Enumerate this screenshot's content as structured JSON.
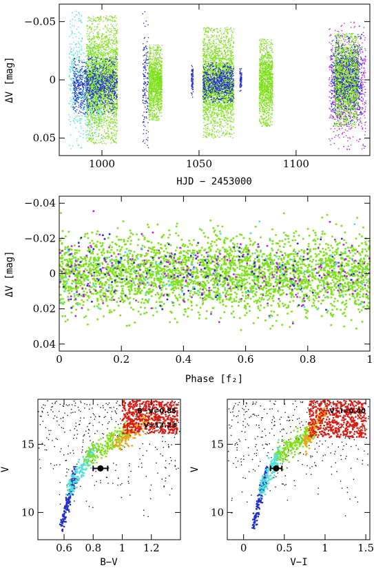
{
  "colors": {
    "cyan": "#4fe0d8",
    "green": "#7ee01a",
    "blue": "#2430c8",
    "magenta": "#b02ad8",
    "black": "#111111",
    "orange": "#f0a018",
    "red": "#d81c14"
  },
  "chart_data": [
    {
      "type": "scatter",
      "xlabel": "HJD − 2453000",
      "ylabel": "ΔV [mag]",
      "xlim": [
        978,
        1138
      ],
      "ylim": [
        0.065,
        -0.065
      ],
      "y_inverted": true,
      "xticks": [
        1000,
        1050,
        1100
      ],
      "yticks": [
        -0.05,
        0,
        0.05
      ],
      "ytick_labels": [
        "−0.05",
        "0",
        "0.05"
      ],
      "xtick_labels": [
        "1000",
        "1050",
        "1100"
      ],
      "clusters": [
        {
          "color": "cyan",
          "x_range": [
            983,
            990
          ],
          "y_range": [
            -0.06,
            0.06
          ]
        },
        {
          "color": "cyan",
          "x_range": [
            990,
            1000
          ],
          "y_range": [
            -0.03,
            0.05
          ]
        },
        {
          "color": "green",
          "x_range": [
            992,
            1008
          ],
          "y_range": [
            -0.055,
            0.055
          ]
        },
        {
          "color": "blue",
          "x_range": [
            985,
            1008
          ],
          "y_range": [
            -0.02,
            0.03
          ]
        },
        {
          "color": "blue",
          "x_range": [
            1021,
            1024
          ],
          "y_range": [
            -0.06,
            0.06
          ]
        },
        {
          "color": "green",
          "x_range": [
            1024,
            1031
          ],
          "y_range": [
            -0.03,
            0.035
          ]
        },
        {
          "color": "blue",
          "x_range": [
            1046,
            1047
          ],
          "y_range": [
            -0.015,
            0.015
          ]
        },
        {
          "color": "green",
          "x_range": [
            1052,
            1068
          ],
          "y_range": [
            -0.045,
            0.05
          ]
        },
        {
          "color": "blue",
          "x_range": [
            1052,
            1068
          ],
          "y_range": [
            -0.015,
            0.02
          ]
        },
        {
          "color": "green",
          "x_range": [
            1081,
            1088
          ],
          "y_range": [
            -0.035,
            0.04
          ]
        },
        {
          "color": "blue",
          "x_range": [
            1071,
            1072
          ],
          "y_range": [
            -0.01,
            0.01
          ]
        },
        {
          "color": "magenta",
          "x_range": [
            1117,
            1136
          ],
          "y_range": [
            -0.05,
            0.06
          ]
        },
        {
          "color": "green",
          "x_range": [
            1120,
            1132
          ],
          "y_range": [
            -0.04,
            0.04
          ]
        },
        {
          "color": "blue",
          "x_range": [
            1118,
            1134
          ],
          "y_range": [
            -0.04,
            0.04
          ]
        }
      ]
    },
    {
      "type": "scatter",
      "xlabel": "Phase [f₂]",
      "ylabel": "ΔV [mag]",
      "xlim": [
        0,
        1
      ],
      "ylim": [
        0.044,
        -0.044
      ],
      "y_inverted": true,
      "xticks": [
        0,
        0.2,
        0.4,
        0.6,
        0.8,
        1
      ],
      "xtick_labels": [
        "0",
        "0.2",
        "0.4",
        "0.6",
        "0.8",
        "1"
      ],
      "yticks": [
        -0.04,
        -0.02,
        0,
        0.02,
        0.04
      ],
      "ytick_labels": [
        "−0.04",
        "−0.02",
        "0",
        "0.02",
        "0.04"
      ],
      "series_colors": [
        "green",
        "magenta",
        "blue",
        "cyan"
      ],
      "y_spread": 0.03
    },
    {
      "type": "scatter",
      "xlabel": "B−V",
      "ylabel": "V",
      "xlim": [
        0.42,
        1.4
      ],
      "ylim": [
        8.0,
        18.3
      ],
      "y_inverted": true,
      "xticks": [
        0.6,
        0.8,
        1,
        1.2
      ],
      "xtick_labels": [
        "0.6",
        "0.8",
        "1",
        "1.2"
      ],
      "yticks": [
        10,
        15
      ],
      "ytick_labels": [
        "10",
        "15"
      ],
      "annotations": [
        "B−V=0.85",
        "V=13.23"
      ],
      "target": {
        "x": 0.85,
        "y": 13.23,
        "xerr": 0.05
      },
      "sequence": [
        {
          "color": "blue",
          "x0": 0.58,
          "x1": 0.68,
          "y0": 9.0,
          "y1": 13.0
        },
        {
          "color": "cyan",
          "x0": 0.62,
          "x1": 0.8,
          "y0": 11.5,
          "y1": 14.5
        },
        {
          "color": "green",
          "x0": 0.75,
          "x1": 1.05,
          "y0": 14.0,
          "y1": 16.0
        },
        {
          "color": "orange",
          "x0": 0.95,
          "x1": 1.2,
          "y0": 15.0,
          "y1": 17.0
        },
        {
          "color": "red",
          "x0": 1.0,
          "x1": 1.38,
          "y0": 15.8,
          "y1": 18.2
        }
      ]
    },
    {
      "type": "scatter",
      "xlabel": "V−I",
      "ylabel": "V",
      "xlim": [
        -0.2,
        1.55
      ],
      "ylim": [
        8.0,
        18.3
      ],
      "y_inverted": true,
      "xticks": [
        0,
        0.5,
        1,
        1.5
      ],
      "xtick_labels": [
        "0",
        "0.5",
        "1",
        "1.5"
      ],
      "yticks": [
        10,
        15
      ],
      "ytick_labels": [
        "10",
        "15"
      ],
      "annotations": [
        "V−I=0.40"
      ],
      "target": {
        "x": 0.4,
        "y": 13.23,
        "xerr": 0.07
      },
      "sequence": [
        {
          "color": "blue",
          "x0": 0.12,
          "x1": 0.28,
          "y0": 9.0,
          "y1": 13.0
        },
        {
          "color": "cyan",
          "x0": 0.2,
          "x1": 0.45,
          "y0": 11.5,
          "y1": 14.5
        },
        {
          "color": "green",
          "x0": 0.4,
          "x1": 0.85,
          "y0": 14.0,
          "y1": 16.0
        },
        {
          "color": "orange",
          "x0": 0.75,
          "x1": 1.0,
          "y0": 15.0,
          "y1": 17.5
        },
        {
          "color": "red",
          "x0": 0.8,
          "x1": 1.5,
          "y0": 15.5,
          "y1": 18.2
        }
      ]
    }
  ]
}
